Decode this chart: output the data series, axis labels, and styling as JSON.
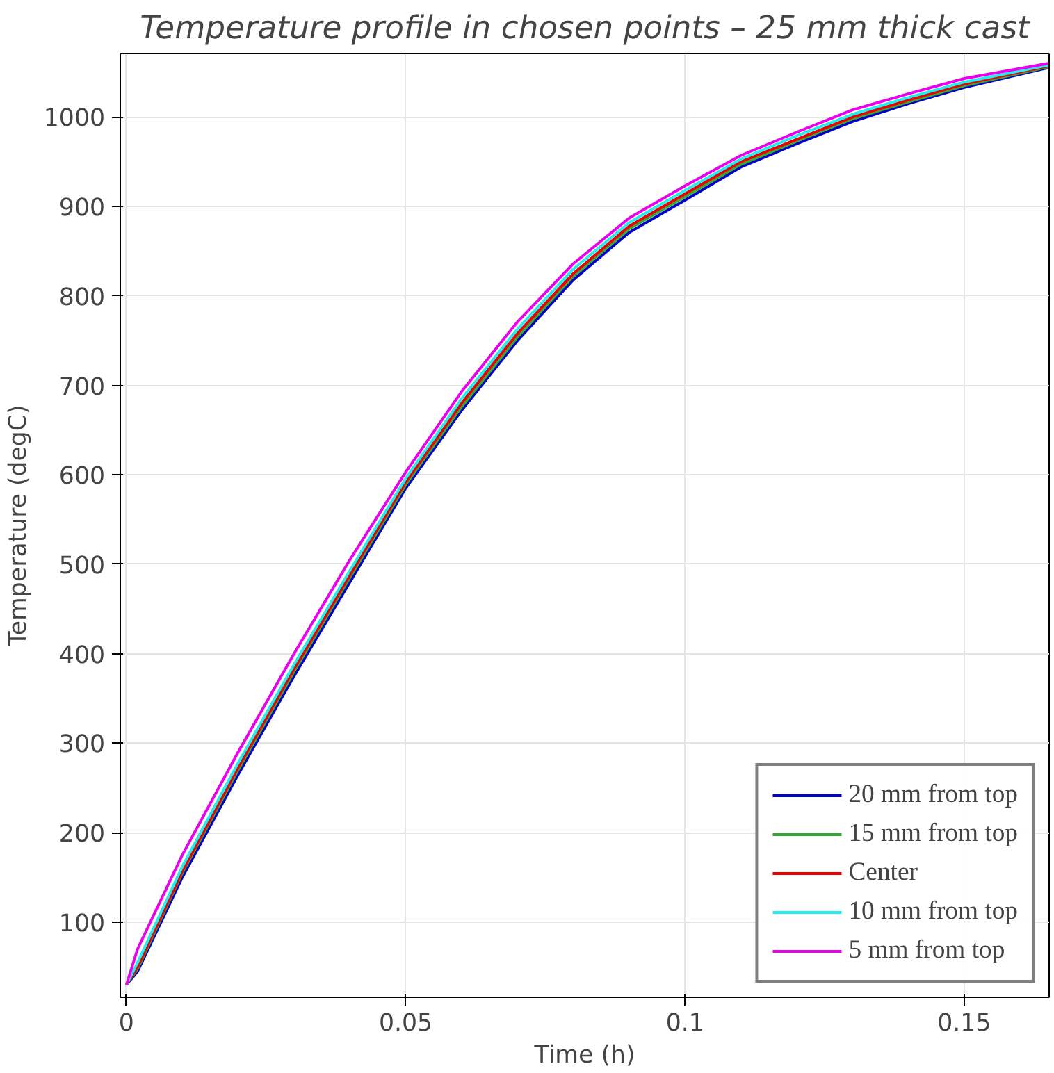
{
  "chart_data": {
    "type": "line",
    "title": "Temperature profile in chosen points – 25 mm thick cast",
    "xlabel": "Time (h)",
    "ylabel": "Temperature (degC)",
    "x": [
      0,
      0.002,
      0.01,
      0.02,
      0.03,
      0.04,
      0.05,
      0.06,
      0.07,
      0.08,
      0.09,
      0.1,
      0.11,
      0.12,
      0.13,
      0.14,
      0.15,
      0.165
    ],
    "series": [
      {
        "name": "20 mm from top",
        "color": "#0000cc",
        "values": [
          30,
          45,
          150,
          265,
          375,
          480,
          585,
          672,
          750,
          818,
          871,
          907,
          944,
          970,
          995,
          1015,
          1033,
          1055
        ]
      },
      {
        "name": "15 mm from top",
        "color": "#33aa33",
        "values": [
          30,
          48,
          155,
          270,
          380,
          485,
          589,
          676,
          754,
          822,
          875,
          911,
          947,
          973,
          998,
          1017,
          1035,
          1056
        ]
      },
      {
        "name": "Center",
        "color": "#ee0000",
        "values": [
          30,
          50,
          157,
          273,
          383,
          488,
          592,
          680,
          758,
          825,
          878,
          914,
          950,
          975,
          1000,
          1019,
          1037,
          1057
        ]
      },
      {
        "name": "10 mm from top",
        "color": "#22eeee",
        "values": [
          30,
          55,
          162,
          278,
          388,
          493,
          596,
          685,
          763,
          830,
          882,
          918,
          953,
          979,
          1003,
          1022,
          1039,
          1058
        ]
      },
      {
        "name": "5 mm from top",
        "color": "#ee00ee",
        "values": [
          30,
          70,
          175,
          290,
          400,
          505,
          603,
          693,
          771,
          836,
          887,
          923,
          957,
          983,
          1008,
          1026,
          1043,
          1060
        ]
      }
    ],
    "xlim": [
      -0.0011,
      0.1652
    ],
    "ylim": [
      16,
      1071
    ],
    "xticks": [
      0,
      0.05,
      0.1,
      0.15
    ],
    "yticks": [
      100,
      200,
      300,
      400,
      500,
      600,
      700,
      800,
      900,
      1000
    ],
    "grid": true,
    "legend": "bottom right",
    "line_style": "solid",
    "marker": "none"
  }
}
